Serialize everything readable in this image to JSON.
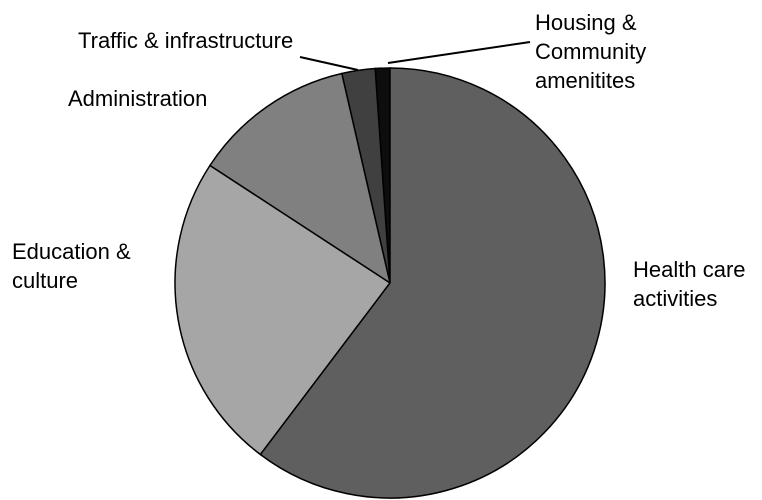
{
  "chart_data": {
    "type": "pie",
    "categories": [
      "Health care activities",
      "Education & culture",
      "Administration",
      "Traffic & infrastructure",
      "Housing & Community amenitites"
    ],
    "values": [
      60.3,
      23.9,
      12.2,
      2.5,
      1.1
    ],
    "colors": [
      "#5f5f5f",
      "#a6a6a6",
      "#808080",
      "#404040",
      "#0d0d0d"
    ]
  }
}
